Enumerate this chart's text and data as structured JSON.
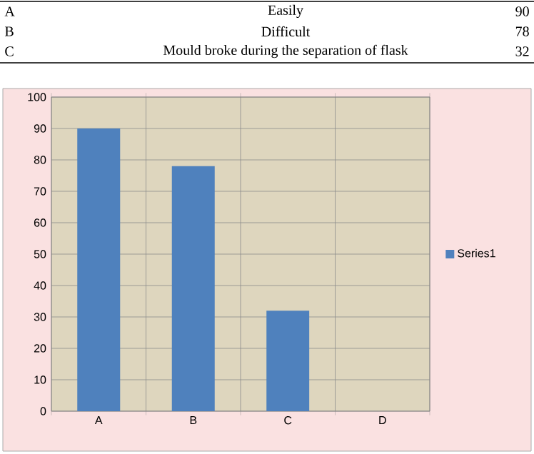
{
  "chart_data": {
    "type": "bar",
    "categories": [
      "A",
      "B",
      "C",
      "D"
    ],
    "series": [
      {
        "name": "Series1",
        "color": "#4f81bd",
        "values": [
          90,
          78,
          32,
          null
        ]
      }
    ],
    "ylim": [
      0,
      100
    ],
    "yticks": [
      0,
      10,
      20,
      30,
      40,
      50,
      60,
      70,
      80,
      90,
      100
    ],
    "grid": true,
    "legend": "right",
    "annotations": [
      "A",
      "Easily",
      "90",
      "B",
      "Difficult",
      "78",
      "C",
      "Mould broke during the separation of flask",
      "32"
    ]
  }
}
